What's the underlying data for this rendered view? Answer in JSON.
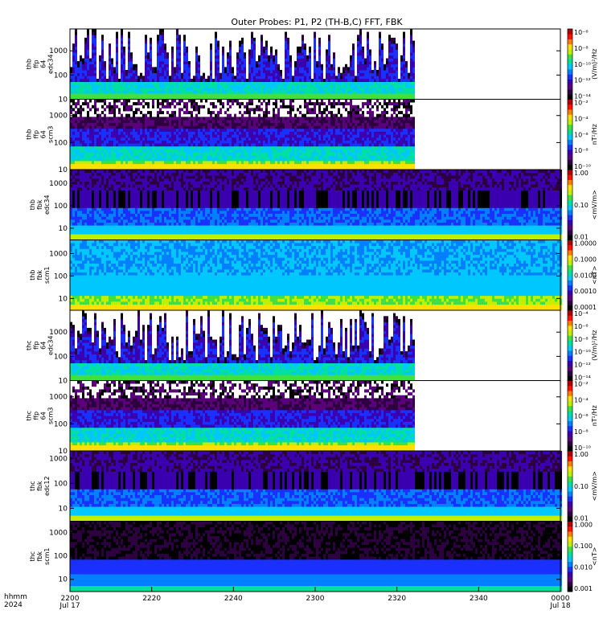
{
  "chart_data": {
    "type": "heatmap",
    "title": "Outer Probes: P1, P2 (TH-B,C) FFT, FBK",
    "xaxis": {
      "label_lines": [
        "hhmm",
        "2024"
      ],
      "ticks": [
        {
          "t": 0,
          "top": "2200",
          "bottom": "Jul 17"
        },
        {
          "t": 20,
          "top": "2220",
          "bottom": ""
        },
        {
          "t": 40,
          "top": "2240",
          "bottom": ""
        },
        {
          "t": 60,
          "top": "2300",
          "bottom": ""
        },
        {
          "t": 80,
          "top": "2320",
          "bottom": ""
        },
        {
          "t": 100,
          "top": "2340",
          "bottom": ""
        },
        {
          "t": 120,
          "top": "0000",
          "bottom": "Jul 18"
        }
      ],
      "range_minutes": [
        0,
        120
      ]
    },
    "panels": [
      {
        "ylabel": [
          "thb",
          "ffp",
          "64",
          "edc34"
        ],
        "yticks": [
          "1000",
          "100",
          "10"
        ],
        "yrange": [
          10,
          8000
        ],
        "zlabel": "(V/m)²/Hz",
        "zticks": [
          "10⁻⁶",
          "10⁻⁸",
          "10⁻¹⁰",
          "10⁻¹²",
          "10⁻¹⁴"
        ],
        "data_end_minute": 84,
        "style": "spiky"
      },
      {
        "ylabel": [
          "thb",
          "ffp",
          "64",
          "scm3"
        ],
        "yticks": [
          "1000",
          "100",
          "10"
        ],
        "yrange": [
          10,
          4000
        ],
        "zlabel": "nT²/Hz",
        "zticks": [
          "10⁻²",
          "10⁻⁴",
          "10⁻⁶",
          "10⁻⁸",
          "10⁻¹⁰"
        ],
        "data_end_minute": 84,
        "style": "scm"
      },
      {
        "ylabel": [
          "thb",
          "fbk",
          "edc34"
        ],
        "yticks": [
          "1000",
          "100",
          "10"
        ],
        "yrange": [
          3,
          4000
        ],
        "zlabel": "<mV/m>",
        "zticks": [
          "1.00",
          "0.10",
          "0.01"
        ],
        "data_end_minute": 120,
        "style": "fbk_e"
      },
      {
        "ylabel": [
          "thb",
          "fbk",
          "scm1"
        ],
        "yticks": [
          "1000",
          "100",
          "10"
        ],
        "yrange": [
          3,
          4000
        ],
        "zlabel": "<nT>",
        "zticks": [
          "1.0000",
          "0.1000",
          "0.0100",
          "0.0010",
          "0.0001"
        ],
        "data_end_minute": 120,
        "style": "fbk_b"
      },
      {
        "ylabel": [
          "thc",
          "ffp",
          "64",
          "edc34"
        ],
        "yticks": [
          "1000",
          "100",
          "10"
        ],
        "yrange": [
          10,
          8000
        ],
        "zlabel": "(V/m)²/Hz",
        "zticks": [
          "10⁻⁴",
          "10⁻⁶",
          "10⁻⁸",
          "10⁻¹⁰",
          "10⁻¹²",
          "10⁻¹⁴"
        ],
        "data_end_minute": 84,
        "style": "spiky"
      },
      {
        "ylabel": [
          "thc",
          "ffp",
          "64",
          "scm3"
        ],
        "yticks": [
          "1000",
          "100",
          "10"
        ],
        "yrange": [
          10,
          4000
        ],
        "zlabel": "nT²/Hz",
        "zticks": [
          "10⁻²",
          "10⁻⁴",
          "10⁻⁶",
          "10⁻⁸",
          "10⁻¹⁰"
        ],
        "data_end_minute": 84,
        "style": "scm"
      },
      {
        "ylabel": [
          "thc",
          "fbk",
          "edc12"
        ],
        "yticks": [
          "1000",
          "100",
          "10"
        ],
        "yrange": [
          3,
          2000
        ],
        "zlabel": "<mV/m>",
        "zticks": [
          "1.00",
          "0.10",
          "0.01"
        ],
        "data_end_minute": 120,
        "style": "fbk_e2"
      },
      {
        "ylabel": [
          "thc",
          "fbk",
          "scm1"
        ],
        "yticks": [
          "1000",
          "100",
          "10"
        ],
        "yrange": [
          3,
          3000
        ],
        "zlabel": "<nT>",
        "zticks": [
          "1.000",
          "0.100",
          "0.010",
          "0.001"
        ],
        "data_end_minute": 120,
        "style": "fbk_b2"
      }
    ],
    "colorscale": [
      "#000000",
      "#2d0040",
      "#5a007a",
      "#3a00b0",
      "#1a30ff",
      "#0080ff",
      "#00c8ff",
      "#00e0a0",
      "#40e040",
      "#c0f000",
      "#ffe000",
      "#ff8000",
      "#ff1000",
      "#b00000"
    ]
  }
}
